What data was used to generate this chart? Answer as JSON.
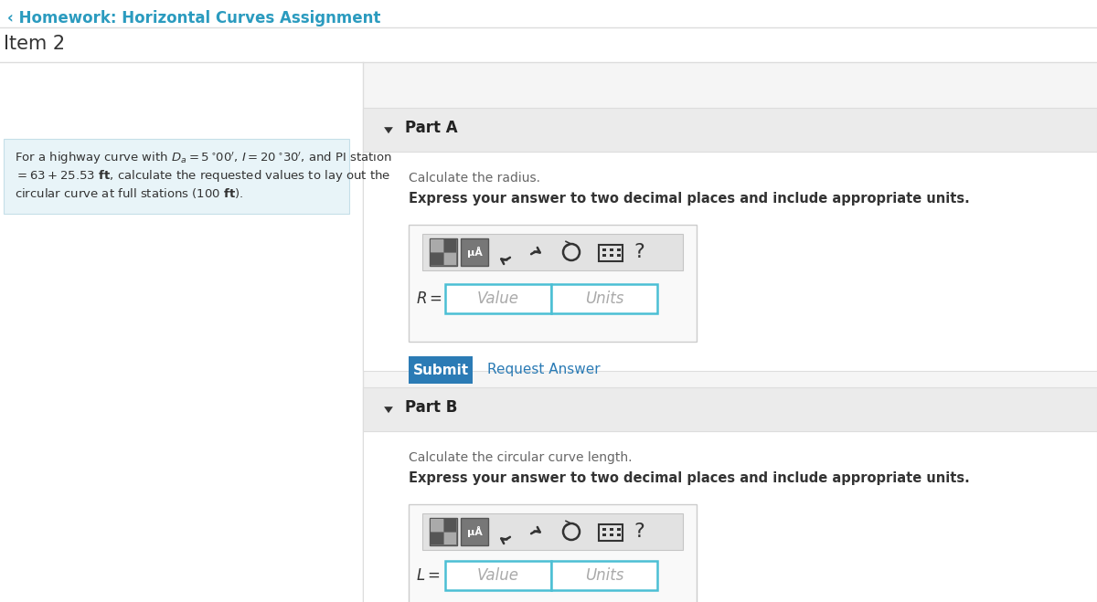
{
  "bg_color": "#ffffff",
  "header_text": "‹ Homework: Horizontal Curves Assignment",
  "header_color": "#2b9bbf",
  "item_text": "Item 2",
  "item_color": "#333333",
  "left_panel_bg": "#e8f4f8",
  "left_panel_border": "#c5dfe8",
  "right_panel_bg": "#f5f5f5",
  "right_panel_border": "#dddddd",
  "part_a_label": "Part A",
  "part_a_instruction": "Calculate the radius.",
  "part_a_express": "Express your answer to two decimal places and include appropriate units.",
  "r_label": "R =",
  "value_placeholder": "Value",
  "units_placeholder": "Units",
  "submit_bg": "#2b7bb5",
  "submit_text": "Submit",
  "submit_text_color": "#ffffff",
  "request_answer_text": "Request Answer",
  "request_answer_color": "#2b7bb5",
  "part_b_label": "Part B",
  "part_b_instruction": "Calculate the circular curve length.",
  "part_b_express": "Express your answer to two decimal places and include appropriate units.",
  "l_label": "L =",
  "divider_color": "#cccccc",
  "input_border": "#4bbfd4",
  "input_placeholder_color": "#aaaaaa",
  "triangle_color": "#333333",
  "icon_dark": "#666666",
  "icon_light": "#999999",
  "part_header_bg": "#ebebeb",
  "part_content_bg": "#ffffff",
  "toolbar_bg": "#e8e8e8",
  "toolbar_border": "#cccccc",
  "outer_input_bg": "#f9f9f9",
  "outer_input_border": "#cccccc"
}
